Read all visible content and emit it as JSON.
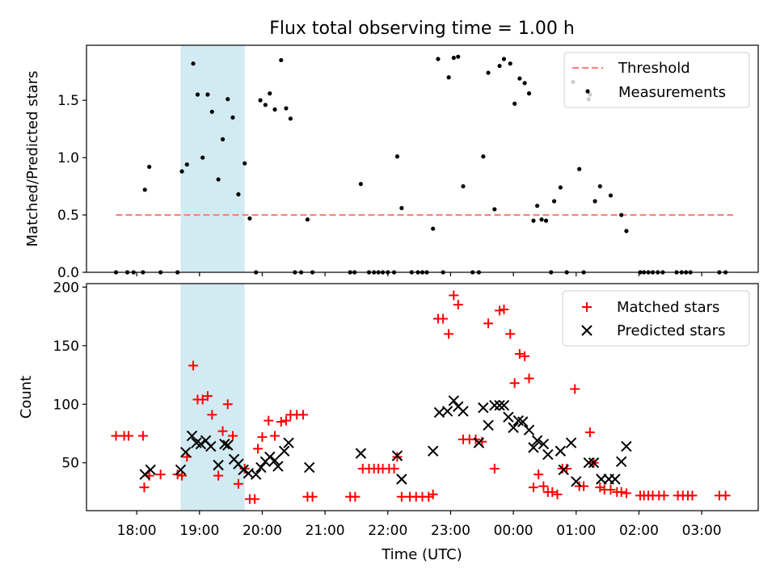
{
  "chart_data": [
    {
      "panel": "top",
      "type": "scatter",
      "title": "Flux total observing time = 1.00 h",
      "ylabel": "Matched/Predicted stars",
      "ylim": [
        0,
        1.98
      ],
      "yticks": [
        0,
        0.5,
        1.0,
        1.5
      ],
      "ytick_labels": [
        "0.0",
        "0.5",
        "1.0",
        "1.5"
      ],
      "threshold": {
        "label": "Threshold",
        "value": 0.5,
        "x_range": [
          17.67,
          27.5
        ],
        "color": "#ff7f7f"
      },
      "highlight_span": [
        18.7,
        19.72
      ],
      "highlight_color": "#add8e6",
      "legend": [
        "Threshold",
        "Measurements"
      ],
      "legend_position": "top-right",
      "measurements": [
        [
          17.67,
          0
        ],
        [
          17.85,
          0
        ],
        [
          17.95,
          0
        ],
        [
          18.1,
          0
        ],
        [
          18.38,
          0
        ],
        [
          18.65,
          0
        ],
        [
          18.13,
          0.72
        ],
        [
          18.2,
          0.92
        ],
        [
          18.72,
          0.88
        ],
        [
          18.8,
          0.94
        ],
        [
          18.9,
          1.82
        ],
        [
          18.97,
          1.55
        ],
        [
          19.05,
          1.0
        ],
        [
          19.13,
          1.55
        ],
        [
          19.2,
          1.4
        ],
        [
          19.3,
          0.81
        ],
        [
          19.37,
          1.16
        ],
        [
          19.45,
          1.51
        ],
        [
          19.53,
          1.35
        ],
        [
          19.62,
          0.68
        ],
        [
          19.72,
          0.95
        ],
        [
          19.8,
          0.47
        ],
        [
          19.9,
          0
        ],
        [
          19.97,
          1.5
        ],
        [
          20.05,
          1.46
        ],
        [
          20.12,
          1.56
        ],
        [
          20.2,
          1.42
        ],
        [
          20.3,
          1.85
        ],
        [
          20.38,
          1.43
        ],
        [
          20.45,
          1.34
        ],
        [
          20.52,
          0
        ],
        [
          20.62,
          0
        ],
        [
          20.72,
          0.46
        ],
        [
          20.8,
          0
        ],
        [
          21.4,
          0
        ],
        [
          21.47,
          0
        ],
        [
          21.57,
          0.77
        ],
        [
          21.7,
          0
        ],
        [
          21.78,
          0
        ],
        [
          21.85,
          0
        ],
        [
          21.92,
          0
        ],
        [
          22.0,
          0
        ],
        [
          22.1,
          0
        ],
        [
          22.15,
          1.01
        ],
        [
          22.22,
          0.56
        ],
        [
          22.38,
          0
        ],
        [
          22.48,
          0
        ],
        [
          22.55,
          0
        ],
        [
          22.62,
          0
        ],
        [
          22.72,
          0.38
        ],
        [
          22.8,
          1.86
        ],
        [
          22.88,
          0
        ],
        [
          22.97,
          1.7
        ],
        [
          23.05,
          1.87
        ],
        [
          23.12,
          1.88
        ],
        [
          23.2,
          0.75
        ],
        [
          23.35,
          0
        ],
        [
          23.45,
          0
        ],
        [
          23.52,
          1.01
        ],
        [
          23.6,
          1.74
        ],
        [
          23.7,
          0.55
        ],
        [
          23.78,
          1.8
        ],
        [
          23.85,
          1.86
        ],
        [
          23.95,
          1.82
        ],
        [
          24.02,
          1.47
        ],
        [
          24.1,
          1.69
        ],
        [
          24.18,
          1.65
        ],
        [
          24.25,
          1.56
        ],
        [
          24.32,
          0.45
        ],
        [
          24.38,
          0.58
        ],
        [
          24.45,
          0.46
        ],
        [
          24.52,
          0.45
        ],
        [
          24.6,
          0
        ],
        [
          24.65,
          0.62
        ],
        [
          24.75,
          0.74
        ],
        [
          24.85,
          0
        ],
        [
          24.95,
          1.66
        ],
        [
          25.05,
          0.9
        ],
        [
          25.12,
          0
        ],
        [
          25.2,
          1.51
        ],
        [
          25.22,
          1.55
        ],
        [
          25.3,
          0.62
        ],
        [
          25.38,
          0.75
        ],
        [
          25.55,
          0.67
        ],
        [
          25.72,
          0.5
        ],
        [
          25.8,
          0.36
        ],
        [
          26.02,
          0
        ],
        [
          26.08,
          0
        ],
        [
          26.15,
          0
        ],
        [
          26.22,
          0
        ],
        [
          26.3,
          0
        ],
        [
          26.38,
          0
        ],
        [
          26.6,
          0
        ],
        [
          26.68,
          0
        ],
        [
          26.75,
          0
        ],
        [
          26.82,
          0
        ],
        [
          27.28,
          0
        ],
        [
          27.38,
          0
        ]
      ]
    },
    {
      "panel": "bottom",
      "type": "scatter",
      "xlabel": "Time (UTC)",
      "ylabel": "Count",
      "ylim": [
        9.1,
        203
      ],
      "yticks": [
        50,
        100,
        150,
        200
      ],
      "ytick_labels": [
        "50",
        "100",
        "150",
        "200"
      ],
      "xlim": [
        17.2,
        27.9
      ],
      "xticks": [
        18,
        19,
        20,
        21,
        22,
        23,
        24,
        25,
        26,
        27
      ],
      "xtick_labels": [
        "18:00",
        "19:00",
        "20:00",
        "21:00",
        "22:00",
        "23:00",
        "00:00",
        "01:00",
        "02:00",
        "03:00"
      ],
      "highlight_span": [
        18.7,
        19.72
      ],
      "legend": [
        "Matched stars",
        "Predicted stars"
      ],
      "legend_position": "top-right",
      "series": [
        {
          "name": "Matched stars",
          "marker": "plus",
          "color": "#ff0000",
          "points": [
            [
              17.67,
              73
            ],
            [
              17.8,
              73
            ],
            [
              17.87,
              73
            ],
            [
              18.1,
              73
            ],
            [
              18.12,
              29
            ],
            [
              18.2,
              39
            ],
            [
              18.38,
              40
            ],
            [
              18.65,
              40
            ],
            [
              18.72,
              39
            ],
            [
              18.8,
              55
            ],
            [
              18.9,
              133
            ],
            [
              18.97,
              104
            ],
            [
              19.05,
              104
            ],
            [
              19.13,
              107
            ],
            [
              19.2,
              91
            ],
            [
              19.3,
              39
            ],
            [
              19.37,
              77
            ],
            [
              19.45,
              100
            ],
            [
              19.53,
              73
            ],
            [
              19.62,
              32
            ],
            [
              19.72,
              45
            ],
            [
              19.8,
              19
            ],
            [
              19.88,
              19
            ],
            [
              19.93,
              62
            ],
            [
              20.0,
              72
            ],
            [
              20.1,
              86
            ],
            [
              20.2,
              73
            ],
            [
              20.3,
              85
            ],
            [
              20.38,
              86
            ],
            [
              20.45,
              91
            ],
            [
              20.55,
              91
            ],
            [
              20.65,
              91
            ],
            [
              20.72,
              21
            ],
            [
              20.8,
              21
            ],
            [
              21.4,
              21
            ],
            [
              21.48,
              21
            ],
            [
              21.6,
              45
            ],
            [
              21.7,
              45
            ],
            [
              21.78,
              45
            ],
            [
              21.85,
              45
            ],
            [
              21.92,
              45
            ],
            [
              22.02,
              45
            ],
            [
              22.1,
              45
            ],
            [
              22.15,
              55
            ],
            [
              22.22,
              21
            ],
            [
              22.35,
              21
            ],
            [
              22.45,
              21
            ],
            [
              22.55,
              21
            ],
            [
              22.65,
              21
            ],
            [
              22.72,
              23
            ],
            [
              22.8,
              173
            ],
            [
              22.88,
              173
            ],
            [
              22.97,
              160
            ],
            [
              23.05,
              193
            ],
            [
              23.12,
              185
            ],
            [
              23.2,
              70
            ],
            [
              23.3,
              70
            ],
            [
              23.4,
              70
            ],
            [
              23.5,
              68
            ],
            [
              23.6,
              169
            ],
            [
              23.7,
              45
            ],
            [
              23.78,
              180
            ],
            [
              23.85,
              181
            ],
            [
              23.95,
              160
            ],
            [
              24.02,
              118
            ],
            [
              24.1,
              143
            ],
            [
              24.18,
              141
            ],
            [
              24.25,
              122
            ],
            [
              24.32,
              29
            ],
            [
              24.4,
              40
            ],
            [
              24.48,
              30
            ],
            [
              24.55,
              25
            ],
            [
              24.62,
              25
            ],
            [
              24.7,
              23
            ],
            [
              24.78,
              45
            ],
            [
              24.85,
              45
            ],
            [
              24.98,
              113
            ],
            [
              25.05,
              30
            ],
            [
              25.12,
              30
            ],
            [
              25.22,
              76
            ],
            [
              25.28,
              50
            ],
            [
              25.38,
              29
            ],
            [
              25.45,
              27
            ],
            [
              25.55,
              27
            ],
            [
              25.65,
              25
            ],
            [
              25.72,
              25
            ],
            [
              25.8,
              24
            ],
            [
              26.02,
              22
            ],
            [
              26.08,
              22
            ],
            [
              26.15,
              22
            ],
            [
              26.22,
              22
            ],
            [
              26.32,
              22
            ],
            [
              26.4,
              22
            ],
            [
              26.62,
              22
            ],
            [
              26.7,
              22
            ],
            [
              26.78,
              22
            ],
            [
              26.85,
              22
            ],
            [
              27.28,
              22
            ],
            [
              27.38,
              22
            ]
          ]
        },
        {
          "name": "Predicted stars",
          "marker": "x",
          "color": "#000000",
          "points": [
            [
              18.13,
              40
            ],
            [
              18.22,
              44
            ],
            [
              18.7,
              44
            ],
            [
              18.78,
              59
            ],
            [
              18.88,
              73
            ],
            [
              18.95,
              67
            ],
            [
              19.02,
              66
            ],
            [
              19.1,
              69
            ],
            [
              19.18,
              64
            ],
            [
              19.3,
              48
            ],
            [
              19.4,
              66
            ],
            [
              19.45,
              65
            ],
            [
              19.55,
              53
            ],
            [
              19.62,
              49
            ],
            [
              19.7,
              44
            ],
            [
              19.78,
              41
            ],
            [
              19.9,
              40
            ],
            [
              19.98,
              46
            ],
            [
              20.05,
              51
            ],
            [
              20.12,
              55
            ],
            [
              20.2,
              52
            ],
            [
              20.25,
              47
            ],
            [
              20.35,
              60
            ],
            [
              20.42,
              67
            ],
            [
              20.75,
              46
            ],
            [
              21.57,
              58
            ],
            [
              22.15,
              56
            ],
            [
              22.22,
              36
            ],
            [
              22.72,
              60
            ],
            [
              22.82,
              93
            ],
            [
              22.95,
              94
            ],
            [
              23.05,
              103
            ],
            [
              23.12,
              98
            ],
            [
              23.2,
              94
            ],
            [
              23.45,
              67
            ],
            [
              23.52,
              97
            ],
            [
              23.6,
              82
            ],
            [
              23.7,
              99
            ],
            [
              23.78,
              99
            ],
            [
              23.85,
              99
            ],
            [
              23.92,
              89
            ],
            [
              24.0,
              80
            ],
            [
              24.08,
              86
            ],
            [
              24.15,
              85
            ],
            [
              24.25,
              78
            ],
            [
              24.32,
              63
            ],
            [
              24.38,
              69
            ],
            [
              24.48,
              66
            ],
            [
              24.55,
              57
            ],
            [
              24.75,
              60
            ],
            [
              24.8,
              44
            ],
            [
              24.92,
              67
            ],
            [
              25.0,
              34
            ],
            [
              25.2,
              50
            ],
            [
              25.28,
              50
            ],
            [
              25.4,
              36
            ],
            [
              25.52,
              36
            ],
            [
              25.62,
              36
            ],
            [
              25.72,
              51
            ],
            [
              25.8,
              64
            ]
          ]
        }
      ]
    }
  ]
}
